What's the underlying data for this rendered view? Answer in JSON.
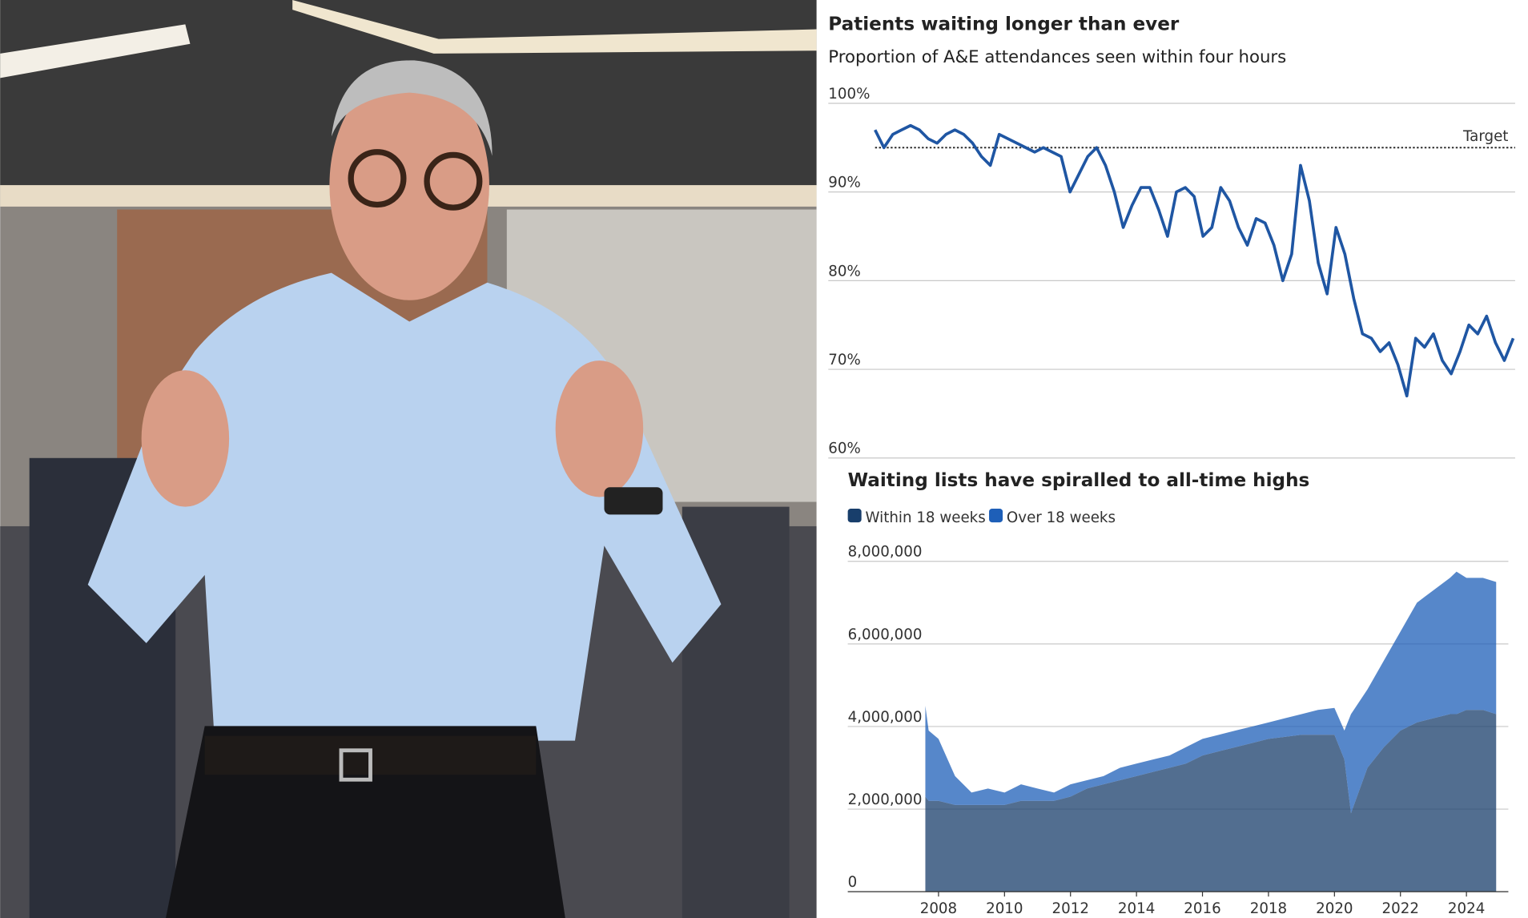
{
  "chart_data": [
    {
      "type": "line",
      "title": "Patients waiting longer than ever",
      "subtitle": "Proportion of A&E attendances seen within four hours",
      "color": "#1f56a3",
      "ylim": [
        60,
        100
      ],
      "yticks": [
        {
          "value": 60,
          "label": "60%"
        },
        {
          "value": 70,
          "label": "70%"
        },
        {
          "value": 80,
          "label": "80%"
        },
        {
          "value": 90,
          "label": "90%"
        },
        {
          "value": 100,
          "label": "100%"
        }
      ],
      "grid": true,
      "target": {
        "value": 95,
        "label": "Target"
      },
      "values": [
        97,
        95,
        96.5,
        97,
        97.5,
        97,
        96,
        95.5,
        96.5,
        97,
        96.5,
        95.5,
        94,
        93,
        96.5,
        96,
        95.5,
        95,
        94.5,
        95,
        94.5,
        94,
        90,
        92,
        94,
        95,
        93,
        90,
        86,
        88.5,
        90.5,
        90.5,
        88,
        85,
        90,
        90.5,
        89.5,
        85,
        86,
        90.5,
        89,
        86,
        84,
        87,
        86.5,
        84,
        80,
        83,
        93,
        89,
        82,
        78.5,
        86,
        83,
        78,
        74,
        73.5,
        72,
        73,
        70.5,
        67,
        73.5,
        72.5,
        74,
        71,
        69.5,
        72,
        75,
        74,
        76,
        73,
        71,
        73.5
      ]
    },
    {
      "type": "stacked-area",
      "title": "Waiting lists have spiralled to all-time highs",
      "legend": "top-left",
      "xlim": [
        2005.25,
        2025.27
      ],
      "xticks": [
        2008,
        2010,
        2012,
        2014,
        2016,
        2018,
        2020,
        2022,
        2024
      ],
      "ylim": [
        0,
        8000000
      ],
      "yticks": [
        0,
        {
          "value": 2000000,
          "label": "2,000,000"
        },
        {
          "value": 4000000,
          "label": "4,000,000"
        },
        {
          "value": 6000000,
          "label": "6,000,000"
        },
        {
          "value": 8000000,
          "label": "8,000,000"
        }
      ],
      "grid": true,
      "x": [
        2007.6,
        2007.7,
        2008.0,
        2008.5,
        2009.0,
        2009.5,
        2010.0,
        2010.5,
        2011.0,
        2011.5,
        2012.0,
        2012.5,
        2013.0,
        2013.5,
        2014.0,
        2014.5,
        2015.0,
        2015.5,
        2016.0,
        2016.5,
        2017.0,
        2017.5,
        2018.0,
        2018.5,
        2019.0,
        2019.5,
        2020.0,
        2020.3,
        2020.5,
        2021.0,
        2021.5,
        2022.0,
        2022.5,
        2023.0,
        2023.5,
        2023.7,
        2024.0,
        2024.5,
        2024.9
      ],
      "series": [
        {
          "name": "Within 18 weeks",
          "color": "#183e6b",
          "values": [
            2300000,
            2200000,
            2200000,
            2100000,
            2100000,
            2100000,
            2100000,
            2200000,
            2200000,
            2200000,
            2300000,
            2500000,
            2600000,
            2700000,
            2800000,
            2900000,
            3000000,
            3100000,
            3300000,
            3400000,
            3500000,
            3600000,
            3700000,
            3750000,
            3800000,
            3800000,
            3800000,
            3200000,
            1900000,
            3000000,
            3500000,
            3900000,
            4100000,
            4200000,
            4300000,
            4300000,
            4400000,
            4400000,
            4300000
          ]
        },
        {
          "name": "Over 18 weeks",
          "color": "#1e5fb8",
          "values": [
            2200000,
            1700000,
            1500000,
            700000,
            300000,
            400000,
            300000,
            400000,
            300000,
            200000,
            300000,
            200000,
            200000,
            300000,
            300000,
            300000,
            300000,
            400000,
            400000,
            400000,
            400000,
            400000,
            400000,
            450000,
            500000,
            600000,
            650000,
            700000,
            2400000,
            1900000,
            2100000,
            2400000,
            2900000,
            3100000,
            3300000,
            3450000,
            3200000,
            3200000,
            3200000
          ]
        }
      ]
    }
  ]
}
